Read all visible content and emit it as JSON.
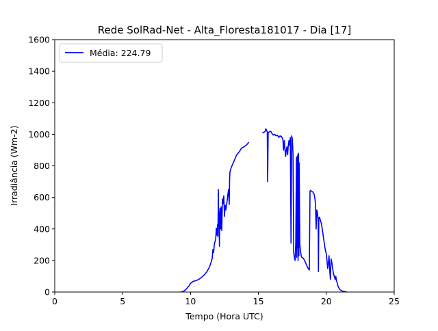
{
  "chart_data": {
    "type": "line",
    "title": "Rede SolRad-Net - Alta_Floresta181017 - Dia [17]",
    "xlabel": "Tempo (Hora UTC)",
    "ylabel": "Irradiância (Wm-2)",
    "xlim": [
      0,
      25
    ],
    "ylim": [
      0,
      1600
    ],
    "xticks": [
      0,
      5,
      10,
      15,
      20,
      25
    ],
    "xtick_labels": [
      "0",
      "5",
      "10",
      "15",
      "20",
      "25"
    ],
    "yticks": [
      0,
      200,
      400,
      600,
      800,
      1000,
      1200,
      1400,
      1600
    ],
    "ytick_labels": [
      "0",
      "200",
      "400",
      "600",
      "800",
      "1000",
      "1200",
      "1400",
      "1600"
    ],
    "grid": false,
    "legend": {
      "position": "upper-left"
    },
    "series": [
      {
        "name": "Média: 224.79",
        "color": "#0000ff",
        "segments": [
          [
            [
              9.3,
              0
            ],
            [
              9.5,
              5
            ],
            [
              9.7,
              20
            ],
            [
              9.9,
              40
            ],
            [
              10.0,
              55
            ],
            [
              10.2,
              68
            ],
            [
              10.4,
              72
            ],
            [
              10.6,
              80
            ],
            [
              10.8,
              92
            ],
            [
              11.0,
              108
            ],
            [
              11.2,
              128
            ],
            [
              11.4,
              160
            ],
            [
              11.5,
              185
            ],
            [
              11.6,
              215
            ],
            [
              11.65,
              270
            ],
            [
              11.7,
              250
            ],
            [
              11.75,
              300
            ],
            [
              11.8,
              320
            ],
            [
              11.85,
              330
            ],
            [
              11.9,
              405
            ],
            [
              11.95,
              360
            ],
            [
              12.0,
              430
            ],
            [
              12.02,
              350
            ],
            [
              12.05,
              650
            ],
            [
              12.08,
              420
            ],
            [
              12.1,
              480
            ],
            [
              12.13,
              290
            ],
            [
              12.15,
              500
            ],
            [
              12.18,
              530
            ],
            [
              12.22,
              400
            ],
            [
              12.25,
              540
            ],
            [
              12.3,
              390
            ],
            [
              12.35,
              590
            ],
            [
              12.4,
              560
            ],
            [
              12.45,
              610
            ],
            [
              12.5,
              480
            ],
            [
              12.55,
              550
            ],
            [
              12.6,
              520
            ],
            [
              12.7,
              580
            ],
            [
              12.75,
              620
            ],
            [
              12.8,
              650
            ],
            [
              12.85,
              555
            ],
            [
              12.88,
              720
            ],
            [
              12.9,
              760
            ],
            [
              13.0,
              790
            ],
            [
              13.1,
              810
            ],
            [
              13.2,
              830
            ],
            [
              13.3,
              850
            ],
            [
              13.4,
              870
            ],
            [
              13.5,
              880
            ],
            [
              13.6,
              890
            ],
            [
              13.7,
              905
            ],
            [
              13.8,
              915
            ],
            [
              13.9,
              918
            ],
            [
              14.0,
              925
            ],
            [
              14.1,
              930
            ],
            [
              14.15,
              935
            ],
            [
              14.2,
              940
            ],
            [
              14.3,
              950
            ]
          ],
          [
            [
              15.3,
              1010
            ],
            [
              15.4,
              1012
            ],
            [
              15.5,
              1020
            ],
            [
              15.55,
              1035
            ],
            [
              15.6,
              1025
            ],
            [
              15.65,
              1015
            ],
            [
              15.68,
              700
            ],
            [
              15.72,
              1010
            ],
            [
              15.8,
              1015
            ],
            [
              15.9,
              1020
            ],
            [
              16.0,
              1005
            ],
            [
              16.1,
              995
            ],
            [
              16.2,
              1000
            ],
            [
              16.3,
              990
            ],
            [
              16.4,
              995
            ],
            [
              16.5,
              980
            ],
            [
              16.6,
              990
            ],
            [
              16.7,
              985
            ],
            [
              16.8,
              970
            ],
            [
              16.85,
              900
            ],
            [
              16.9,
              960
            ],
            [
              16.95,
              910
            ],
            [
              17.0,
              860
            ],
            [
              17.05,
              900
            ],
            [
              17.1,
              920
            ],
            [
              17.15,
              870
            ],
            [
              17.2,
              930
            ],
            [
              17.25,
              960
            ],
            [
              17.3,
              930
            ],
            [
              17.35,
              980
            ],
            [
              17.4,
              310
            ],
            [
              17.45,
              990
            ],
            [
              17.5,
              970
            ],
            [
              17.55,
              870
            ],
            [
              17.6,
              250
            ],
            [
              17.65,
              220
            ],
            [
              17.7,
              200
            ],
            [
              17.75,
              310
            ],
            [
              17.8,
              850
            ],
            [
              17.82,
              220
            ],
            [
              17.85,
              860
            ],
            [
              17.88,
              280
            ],
            [
              17.9,
              870
            ],
            [
              17.92,
              200
            ],
            [
              17.95,
              880
            ],
            [
              17.98,
              230
            ],
            [
              18.0,
              820
            ],
            [
              18.05,
              300
            ],
            [
              18.1,
              260
            ],
            [
              18.15,
              230
            ],
            [
              18.2,
              220
            ],
            [
              18.3,
              215
            ],
            [
              18.4,
              200
            ],
            [
              18.5,
              180
            ],
            [
              18.6,
              160
            ],
            [
              18.7,
              145
            ],
            [
              18.75,
              140
            ],
            [
              18.8,
              640
            ],
            [
              18.85,
              645
            ],
            [
              18.9,
              640
            ],
            [
              19.0,
              635
            ],
            [
              19.1,
              620
            ],
            [
              19.15,
              600
            ],
            [
              19.2,
              560
            ],
            [
              19.25,
              400
            ],
            [
              19.3,
              520
            ],
            [
              19.35,
              500
            ],
            [
              19.4,
              460
            ],
            [
              19.42,
              130
            ],
            [
              19.45,
              470
            ],
            [
              19.5,
              475
            ],
            [
              19.55,
              460
            ],
            [
              19.6,
              445
            ],
            [
              19.65,
              430
            ],
            [
              19.7,
              400
            ],
            [
              19.75,
              370
            ],
            [
              19.8,
              340
            ],
            [
              19.85,
              310
            ],
            [
              19.9,
              280
            ],
            [
              19.95,
              260
            ],
            [
              20.0,
              240
            ],
            [
              20.05,
              200
            ],
            [
              20.1,
              150
            ],
            [
              20.15,
              180
            ],
            [
              20.2,
              230
            ],
            [
              20.25,
              140
            ],
            [
              20.3,
              80
            ],
            [
              20.35,
              210
            ],
            [
              20.4,
              190
            ],
            [
              20.45,
              160
            ],
            [
              20.5,
              130
            ],
            [
              20.55,
              110
            ],
            [
              20.6,
              95
            ],
            [
              20.65,
              80
            ],
            [
              20.7,
              100
            ],
            [
              20.75,
              70
            ],
            [
              20.8,
              60
            ],
            [
              20.85,
              40
            ],
            [
              20.9,
              30
            ],
            [
              21.0,
              15
            ],
            [
              21.1,
              10
            ],
            [
              21.2,
              5
            ],
            [
              21.4,
              2
            ],
            [
              21.5,
              0
            ]
          ]
        ]
      }
    ]
  }
}
